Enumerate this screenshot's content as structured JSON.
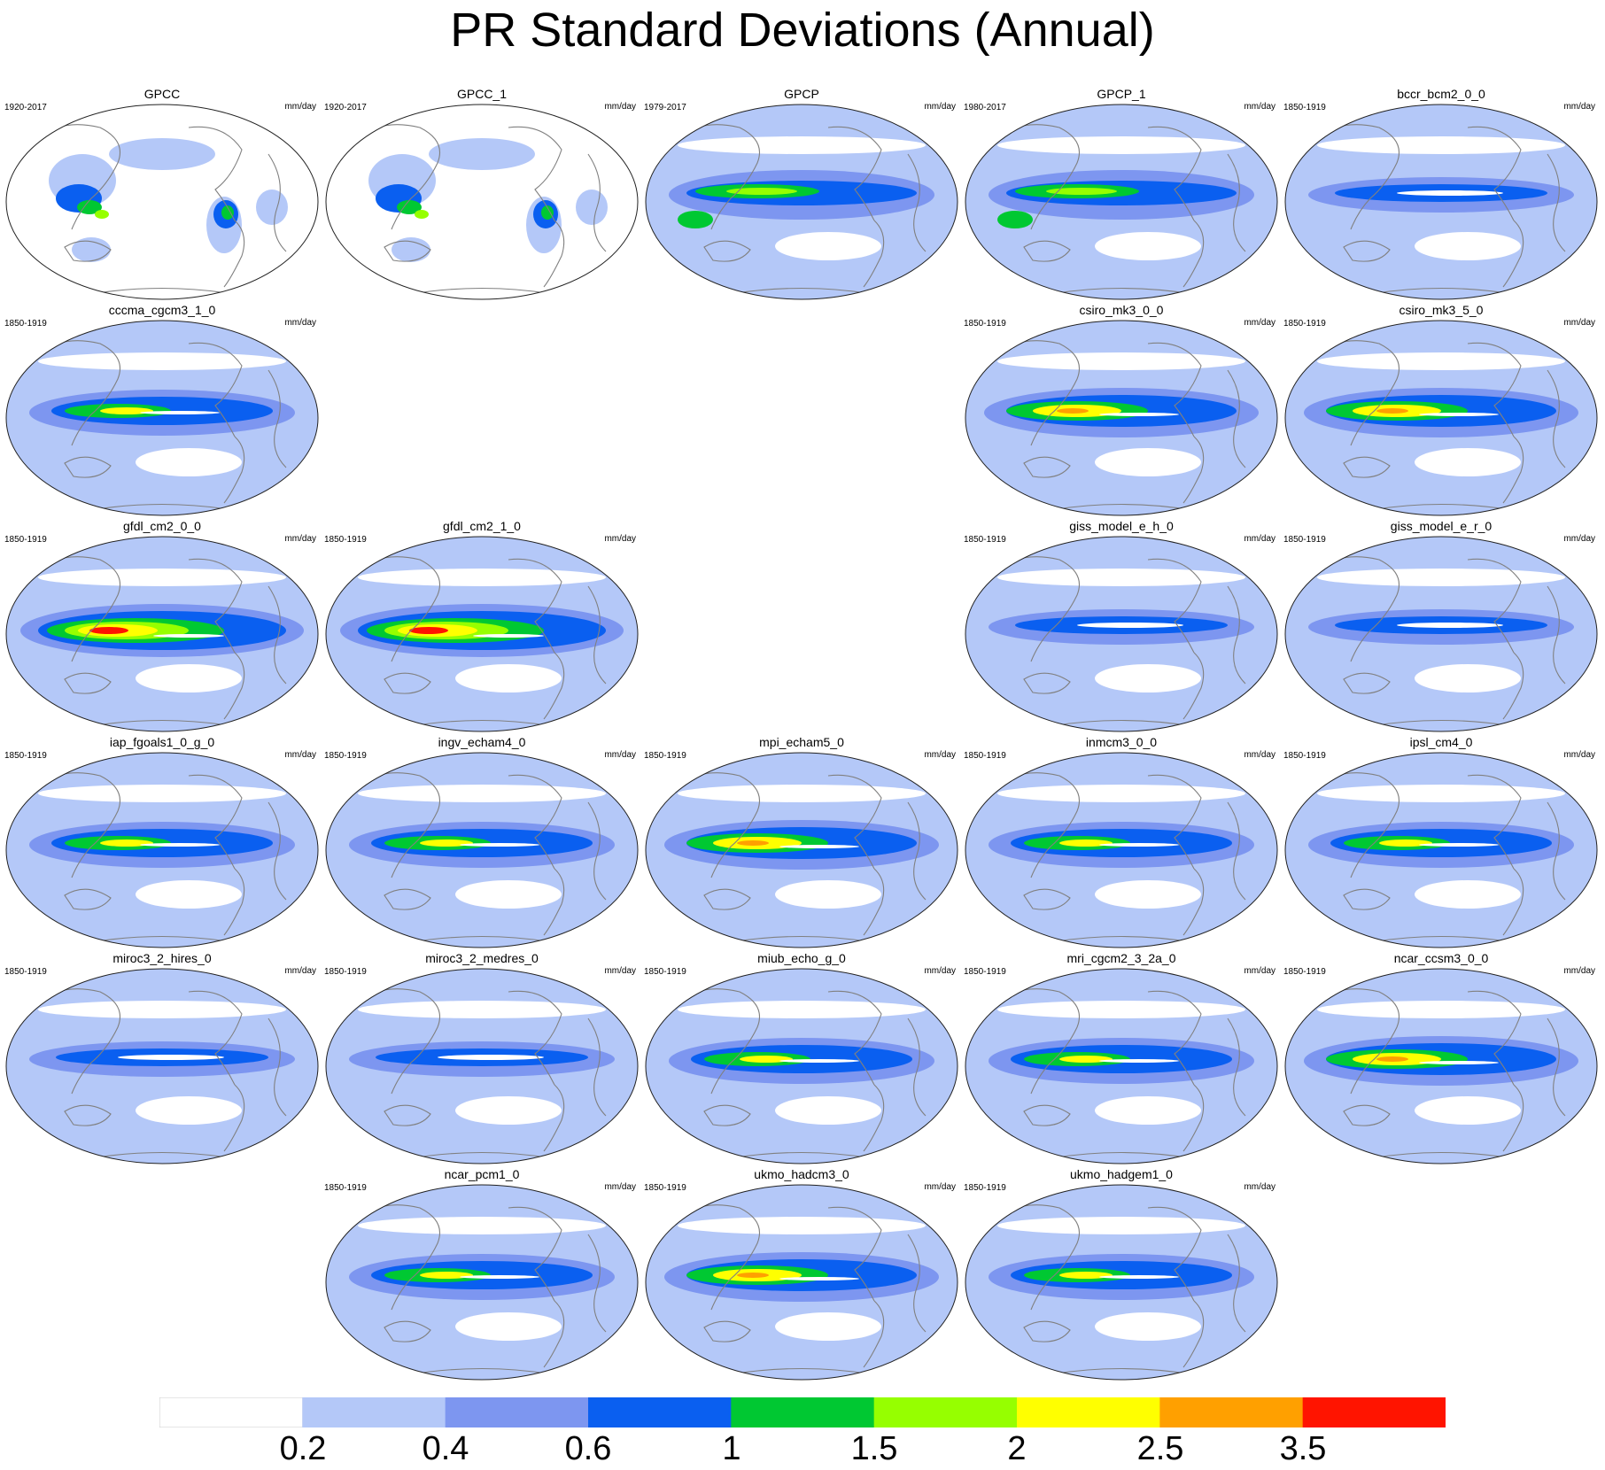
{
  "title": "PR Standard Deviations (Annual)",
  "units": "mm/day",
  "panels": [
    {
      "id": "p0",
      "name": "GPCC",
      "period": "1920-2017",
      "style": "land"
    },
    {
      "id": "p1",
      "name": "GPCC_1",
      "period": "1920-2017",
      "style": "land"
    },
    {
      "id": "p2",
      "name": "GPCP",
      "period": "1979-2017",
      "style": "obs"
    },
    {
      "id": "p3",
      "name": "GPCP_1",
      "period": "1980-2017",
      "style": "obs"
    },
    {
      "id": "p4",
      "name": "bccr_bcm2_0_0",
      "period": "1850-1919",
      "style": "blue"
    },
    {
      "id": "p5",
      "name": "cccma_cgcm3_1_0",
      "period": "1850-1919",
      "style": "moderate"
    },
    {
      "id": "p6",
      "name": "csiro_mk3_0_0",
      "period": "1850-1919",
      "style": "strong"
    },
    {
      "id": "p7",
      "name": "csiro_mk3_5_0",
      "period": "1850-1919",
      "style": "strong"
    },
    {
      "id": "p8",
      "name": "gfdl_cm2_0_0",
      "period": "1850-1919",
      "style": "extreme"
    },
    {
      "id": "p9",
      "name": "gfdl_cm2_1_0",
      "period": "1850-1919",
      "style": "extreme"
    },
    {
      "id": "p10",
      "name": "giss_model_e_h_0",
      "period": "1850-1919",
      "style": "blue"
    },
    {
      "id": "p11",
      "name": "giss_model_e_r_0",
      "period": "1850-1919",
      "style": "blue"
    },
    {
      "id": "p12",
      "name": "iap_fgoals1_0_g_0",
      "period": "1850-1919",
      "style": "moderate"
    },
    {
      "id": "p13",
      "name": "ingv_echam4_0",
      "period": "1850-1919",
      "style": "moderate"
    },
    {
      "id": "p14",
      "name": "mpi_echam5_0",
      "period": "1850-1919",
      "style": "strong"
    },
    {
      "id": "p15",
      "name": "inmcm3_0_0",
      "period": "1850-1919",
      "style": "moderate"
    },
    {
      "id": "p16",
      "name": "ipsl_cm4_0",
      "period": "1850-1919",
      "style": "moderate"
    },
    {
      "id": "p17",
      "name": "miroc3_2_hires_0",
      "period": "1850-1919",
      "style": "blue"
    },
    {
      "id": "p18",
      "name": "miroc3_2_medres_0",
      "period": "1850-1919",
      "style": "blue"
    },
    {
      "id": "p19",
      "name": "miub_echo_g_0",
      "period": "1850-1919",
      "style": "moderate"
    },
    {
      "id": "p20",
      "name": "mri_cgcm2_3_2a_0",
      "period": "1850-1919",
      "style": "moderate"
    },
    {
      "id": "p21",
      "name": "ncar_ccsm3_0_0",
      "period": "1850-1919",
      "style": "strong"
    },
    {
      "id": "p22",
      "name": "ncar_pcm1_0",
      "period": "1850-1919",
      "style": "moderate"
    },
    {
      "id": "p23",
      "name": "ukmo_hadcm3_0",
      "period": "1850-1919",
      "style": "strong"
    },
    {
      "id": "p24",
      "name": "ukmo_hadgem1_0",
      "period": "1850-1919",
      "style": "moderate"
    }
  ],
  "colorbar": {
    "colors": [
      "#ffffff",
      "#b4c8f8",
      "#7d96f0",
      "#0a5ff0",
      "#00c832",
      "#96ff00",
      "#ffff00",
      "#ffa000",
      "#ff1400"
    ],
    "labels": [
      "0.2",
      "0.4",
      "0.6",
      "1",
      "1.5",
      "2",
      "2.5",
      "3.5"
    ]
  }
}
